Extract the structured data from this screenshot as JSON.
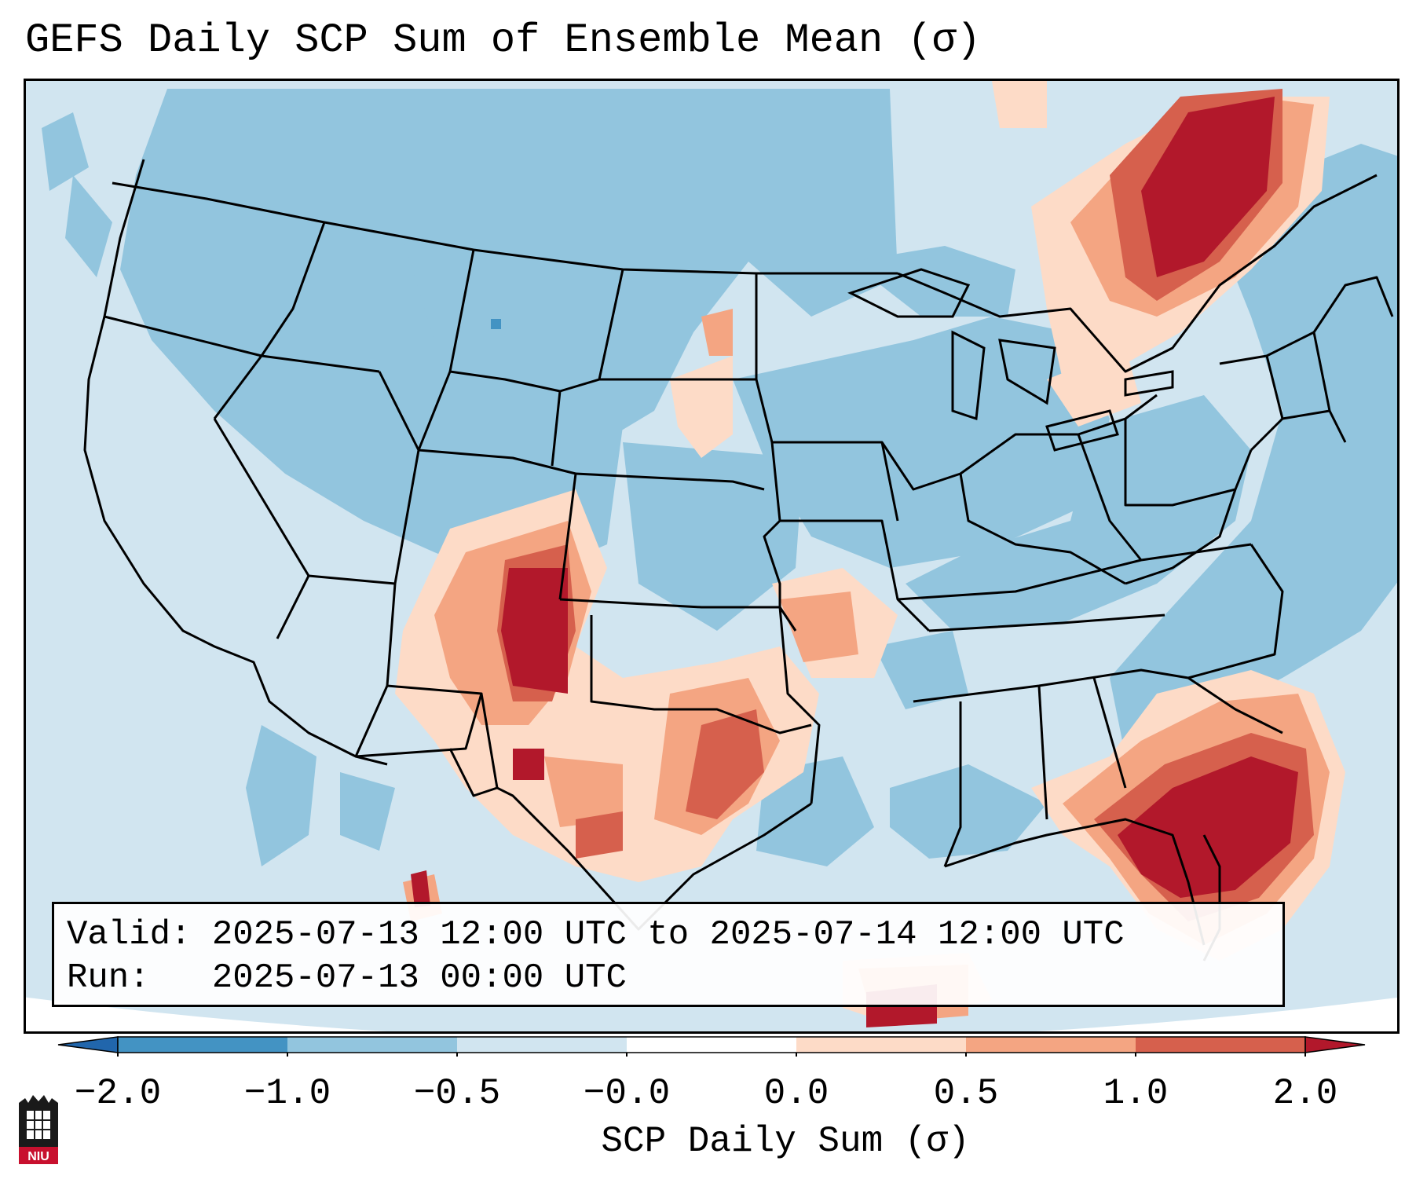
{
  "title": "GEFS Daily SCP Sum of Ensemble Mean (σ)",
  "info": {
    "valid": "Valid: 2025-07-13 12:00 UTC to 2025-07-14 12:00 UTC",
    "run": "Run:   2025-07-13 00:00 UTC"
  },
  "colorbar": {
    "label": "SCP Daily Sum (σ)",
    "ticks": [
      "−2.0",
      "−1.0",
      "−0.5",
      "−0.0",
      "0.0",
      "0.5",
      "1.0",
      "2.0"
    ],
    "colors": [
      "#4393c3",
      "#92c5de",
      "#d1e5f0",
      "#fddbc7",
      "#f4a582",
      "#d6604d",
      "#b2182b"
    ],
    "under_color": "#2166ac",
    "over_color": "#b2182b"
  },
  "map": {
    "background_color": "#d1e5f0",
    "outside_color": "#ffffff",
    "region": "Contiguous United States",
    "field": "SCP daily sum anomaly (σ)"
  },
  "logo": {
    "text": "NIU"
  }
}
